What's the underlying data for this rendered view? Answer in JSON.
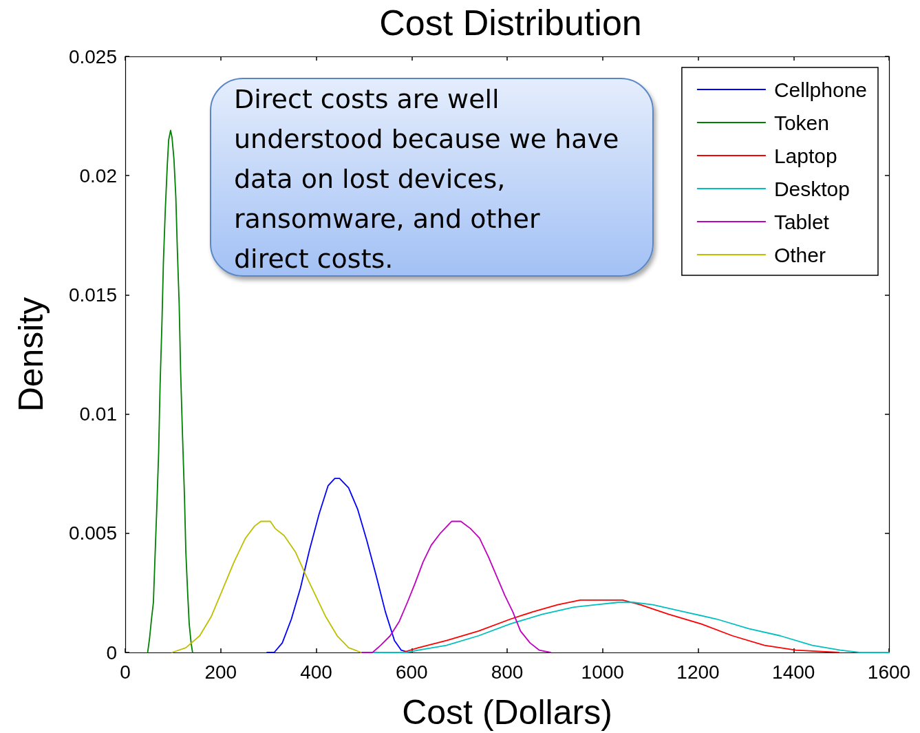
{
  "chart_data": {
    "type": "line",
    "title": "Cost Distribution",
    "xlabel": "Cost (Dollars)",
    "ylabel": "Density",
    "annotations": [
      "Direct costs are well understood because we have data on lost devices, ransomware, and other direct costs."
    ],
    "xlim": [
      0,
      1600
    ],
    "xticks": [
      0,
      200,
      400,
      600,
      800,
      1000,
      1200,
      1400,
      1600
    ],
    "ylim": [
      0,
      0.025
    ],
    "yticks": [
      0,
      0.005,
      0.01,
      0.015,
      0.02,
      0.025
    ],
    "grid": false,
    "legend": "top right",
    "marker": "none",
    "line_style": "solid",
    "series": [
      {
        "name": "Cellphone",
        "color": "#0000ff",
        "x": [
          297,
          312,
          329,
          348,
          367,
          386,
          406,
          425,
          439,
          449,
          468,
          487,
          506,
          526,
          545,
          564,
          578,
          595
        ],
        "values": [
          0,
          0,
          0.0004,
          0.0014,
          0.0027,
          0.0043,
          0.0058,
          0.007,
          0.0073,
          0.0073,
          0.0069,
          0.006,
          0.0047,
          0.0032,
          0.0017,
          0.0005,
          0.0001,
          0
        ]
      },
      {
        "name": "Token",
        "color": "#008000",
        "x": [
          47,
          51,
          55,
          59,
          62,
          66,
          70,
          73,
          77,
          80,
          84,
          88,
          91,
          95,
          98,
          102,
          106,
          109,
          113,
          116,
          120,
          124,
          127,
          131,
          134,
          138,
          141
        ],
        "values": [
          0,
          0.0006,
          0.0014,
          0.0021,
          0.0038,
          0.006,
          0.0084,
          0.0112,
          0.0139,
          0.0164,
          0.0186,
          0.0204,
          0.0215,
          0.0219,
          0.0216,
          0.0207,
          0.0191,
          0.017,
          0.0146,
          0.0118,
          0.0091,
          0.0066,
          0.0042,
          0.0024,
          0.0012,
          0.0004,
          0
        ]
      },
      {
        "name": "Laptop",
        "color": "#ff0000",
        "x": [
          581,
          614,
          673,
          740,
          807,
          853,
          906,
          953,
          1042,
          1079,
          1139,
          1206,
          1272,
          1339,
          1405,
          1495
        ],
        "values": [
          0,
          0.0002,
          0.0005,
          0.0009,
          0.0014,
          0.0017,
          0.002,
          0.0022,
          0.0022,
          0.002,
          0.0016,
          0.0012,
          0.0007,
          0.0003,
          0.0001,
          0
        ]
      },
      {
        "name": "Desktop",
        "color": "#00bfbf",
        "x": [
          500,
          590,
          614,
          673,
          740,
          807,
          873,
          940,
          986,
          1032,
          1065,
          1105,
          1172,
          1239,
          1306,
          1372,
          1439,
          1498,
          1538,
          1600
        ],
        "values": [
          0,
          0,
          0.0001,
          0.0003,
          0.0007,
          0.0012,
          0.0016,
          0.0019,
          0.002,
          0.0021,
          0.0021,
          0.002,
          0.0017,
          0.0014,
          0.001,
          0.0007,
          0.0003,
          0.0001,
          0,
          0
        ]
      },
      {
        "name": "Tablet",
        "color": "#bf00bf",
        "x": [
          494,
          518,
          535,
          555,
          574,
          591,
          607,
          624,
          641,
          660,
          679,
          684,
          703,
          723,
          742,
          761,
          778,
          795,
          812,
          828,
          848,
          867,
          891
        ],
        "values": [
          0,
          0,
          0.0003,
          0.0007,
          0.0013,
          0.0021,
          0.0029,
          0.0038,
          0.0045,
          0.005,
          0.0054,
          0.0055,
          0.0055,
          0.0052,
          0.0048,
          0.004,
          0.0032,
          0.0024,
          0.0017,
          0.0009,
          0.0004,
          0.0001,
          0
        ]
      },
      {
        "name": "Other",
        "color": "#bfbf00",
        "x": [
          98,
          127,
          156,
          180,
          201,
          228,
          252,
          271,
          284,
          304,
          314,
          333,
          357,
          377,
          396,
          420,
          444,
          468,
          494
        ],
        "values": [
          0,
          0.0002,
          0.0007,
          0.0015,
          0.0025,
          0.0038,
          0.0048,
          0.0053,
          0.0055,
          0.0055,
          0.0052,
          0.0049,
          0.0042,
          0.0033,
          0.0025,
          0.0015,
          0.0007,
          0.0002,
          0
        ]
      }
    ]
  }
}
